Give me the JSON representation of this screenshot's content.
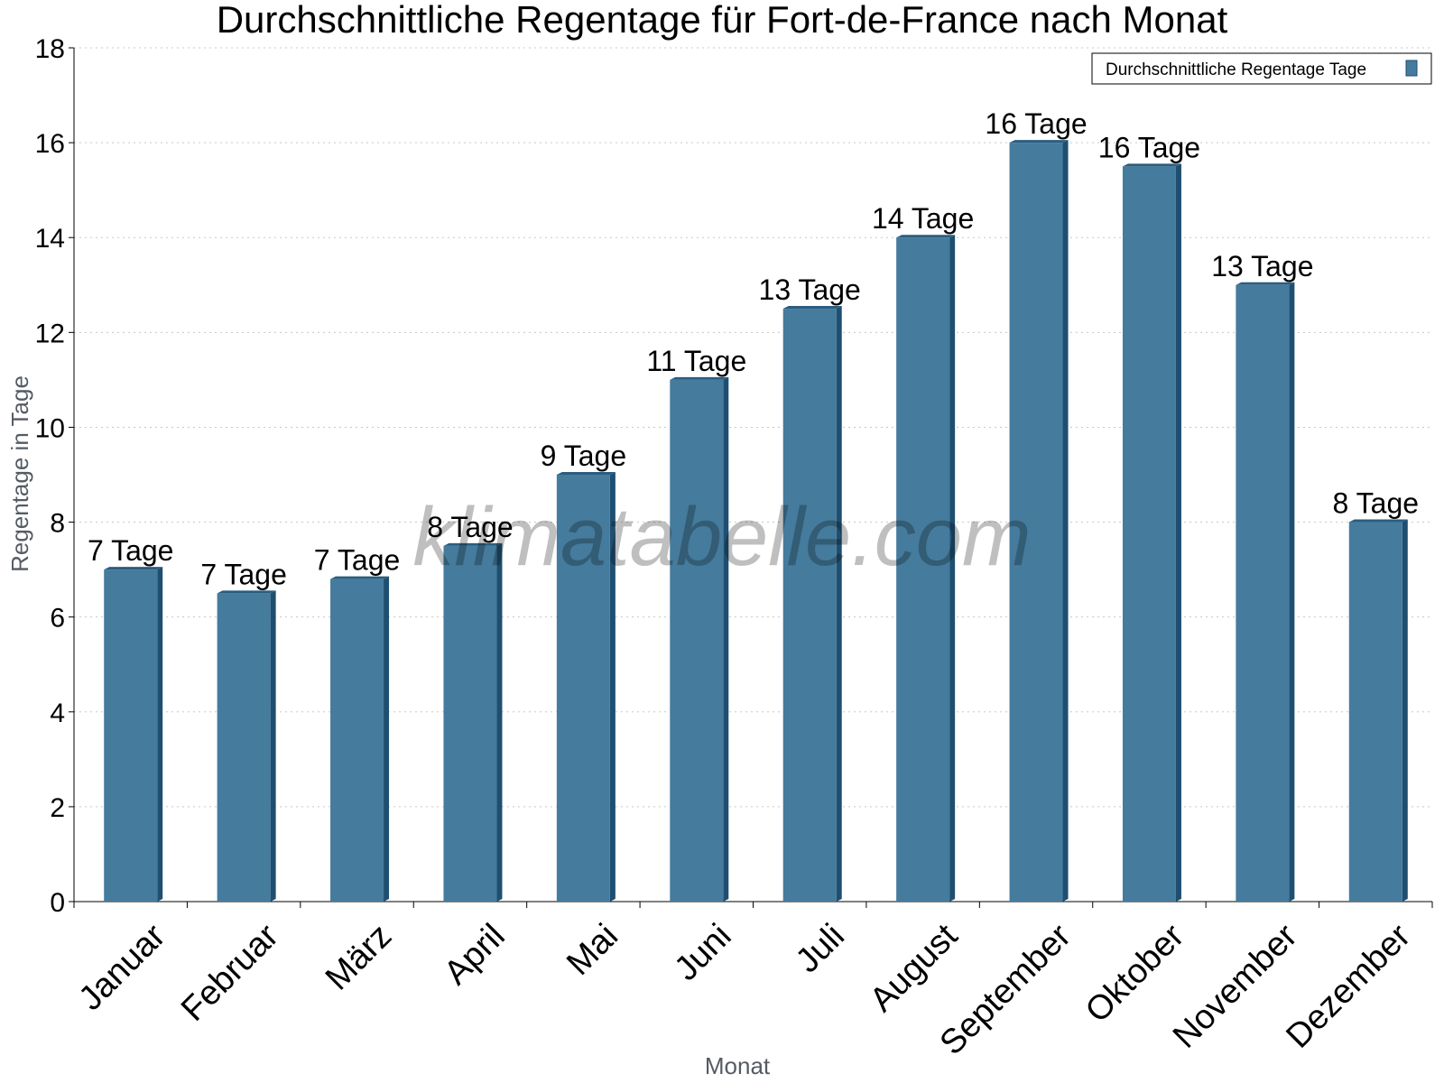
{
  "chart_data": {
    "type": "bar",
    "title": "Durchschnittliche Regentage für Fort-de-France nach Monat",
    "xlabel": "Monat",
    "ylabel": "Regentage in Tage",
    "ylim": [
      0,
      18
    ],
    "yticks": [
      0,
      2,
      4,
      6,
      8,
      10,
      12,
      14,
      16,
      18
    ],
    "grid": true,
    "legend_position": "top-right",
    "categories": [
      "Januar",
      "Februar",
      "März",
      "April",
      "Mai",
      "Juni",
      "Juli",
      "August",
      "September",
      "Oktober",
      "November",
      "Dezember"
    ],
    "series": [
      {
        "name": "Durchschnittliche Regentage Tage",
        "color": "#457b9d",
        "values": [
          7.0,
          6.5,
          6.8,
          7.5,
          9.0,
          11.0,
          12.5,
          14.0,
          16.0,
          15.5,
          13.0,
          8.0
        ],
        "labels": [
          "7 Tage",
          "7 Tage",
          "7 Tage",
          "8 Tage",
          "9 Tage",
          "11 Tage",
          "13 Tage",
          "14 Tage",
          "16 Tage",
          "16 Tage",
          "13 Tage",
          "8 Tage"
        ]
      }
    ]
  },
  "watermark": "klimatabelle.com",
  "colors": {
    "bar_front": "#457b9d",
    "bar_side": "#1f4f70",
    "bar_top": "#2b5d80"
  }
}
